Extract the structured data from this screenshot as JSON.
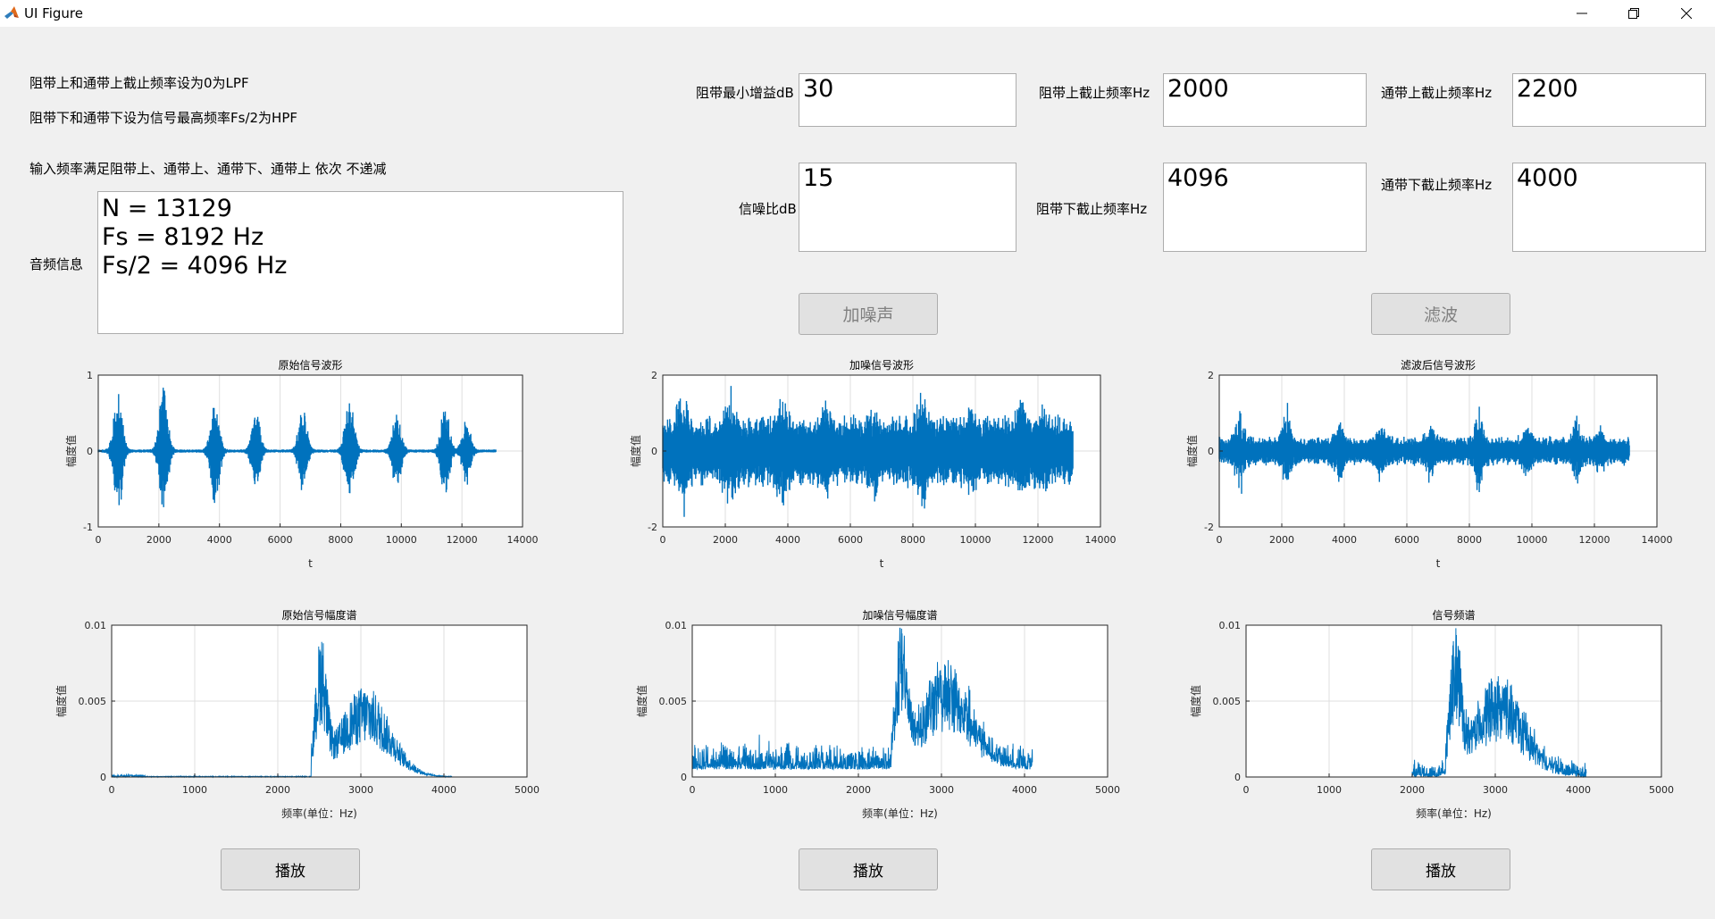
{
  "window": {
    "title": "UI Figure",
    "icon": "matlab-icon"
  },
  "info": {
    "line1": "阻带上和通带上截止频率设为0为LPF",
    "line2": "阻带下和通带下设为信号最高频率Fs/2为HPF",
    "line3": "输入频率满足阻带上、通带上、通带下、通带上 依次 不递减",
    "audio_label": "音频信息",
    "audio_lines": [
      "N = 13129",
      "Fs = 8192 Hz",
      "Fs/2 = 4096 Hz"
    ]
  },
  "params": {
    "stop_gain_label": "阻带最小增益dB",
    "stop_gain": "30",
    "snr_label": "信噪比dB",
    "snr": "15",
    "stop_upper_label": "阻带上截止频率Hz",
    "stop_upper": "2000",
    "stop_lower_label": "阻带下截止频率Hz",
    "stop_lower": "4096",
    "pass_upper_label": "通带上截止频率Hz",
    "pass_upper": "2200",
    "pass_lower_label": "通带下截止频率Hz",
    "pass_lower": "4000"
  },
  "buttons": {
    "add_noise": "加噪声",
    "filter": "滤波",
    "play": "播放"
  },
  "colors": {
    "series": "#0072bd",
    "grid": "#dfdfdf",
    "axis": "#262626"
  },
  "chart_data": [
    {
      "type": "line",
      "title": "原始信号波形",
      "xlabel": "t",
      "ylabel": "幅度值",
      "xlim": [
        0,
        14000
      ],
      "ylim": [
        -1,
        1
      ],
      "xticks": [
        0,
        2000,
        4000,
        6000,
        8000,
        10000,
        12000,
        14000
      ],
      "yticks": [
        -1,
        0,
        1
      ],
      "signal": "bursts",
      "samples": 13129,
      "peaks": [
        0.9,
        0.95,
        0.8,
        0.6,
        0.6,
        0.9,
        0.55,
        0.7,
        0.45
      ]
    },
    {
      "type": "line",
      "title": "加噪信号波形",
      "xlabel": "t",
      "ylabel": "幅度值",
      "xlim": [
        0,
        14000
      ],
      "ylim": [
        -2,
        2
      ],
      "xticks": [
        0,
        2000,
        4000,
        6000,
        8000,
        10000,
        12000,
        14000
      ],
      "yticks": [
        -2,
        0,
        2
      ],
      "signal": "noisy",
      "samples": 13129,
      "peaks": [
        0.9,
        0.95,
        0.8,
        0.6,
        0.6,
        0.9,
        0.55,
        0.7,
        0.45
      ]
    },
    {
      "type": "line",
      "title": "滤波后信号波形",
      "xlabel": "t",
      "ylabel": "幅度值",
      "xlim": [
        0,
        14000
      ],
      "ylim": [
        -2,
        2
      ],
      "xticks": [
        0,
        2000,
        4000,
        6000,
        8000,
        10000,
        12000,
        14000
      ],
      "yticks": [
        -2,
        0,
        2
      ],
      "signal": "filtered",
      "samples": 13129,
      "peaks": [
        0.9,
        0.95,
        0.8,
        0.6,
        0.6,
        0.9,
        0.55,
        0.7,
        0.45
      ]
    },
    {
      "type": "line",
      "title": "原始信号幅度谱",
      "xlabel": "频率(单位：Hz)",
      "ylabel": "幅度值",
      "xlim": [
        0,
        5000
      ],
      "ylim": [
        0,
        0.01
      ],
      "xticks": [
        0,
        1000,
        2000,
        3000,
        4000,
        5000
      ],
      "yticks": [
        0,
        0.005,
        0.01
      ],
      "spectrum": "original",
      "fmax": 4096
    },
    {
      "type": "line",
      "title": "加噪信号幅度谱",
      "xlabel": "频率(单位：Hz)",
      "ylabel": "幅度值",
      "xlim": [
        0,
        5000
      ],
      "ylim": [
        0,
        0.01
      ],
      "xticks": [
        0,
        1000,
        2000,
        3000,
        4000,
        5000
      ],
      "yticks": [
        0,
        0.005,
        0.01
      ],
      "spectrum": "noisy",
      "fmax": 4096
    },
    {
      "type": "line",
      "title": "信号频谱",
      "xlabel": "频率(单位：Hz)",
      "ylabel": "幅度值",
      "xlim": [
        0,
        5000
      ],
      "ylim": [
        0,
        0.01
      ],
      "xticks": [
        0,
        1000,
        2000,
        3000,
        4000,
        5000
      ],
      "yticks": [
        0,
        0.005,
        0.01
      ],
      "spectrum": "filtered",
      "fmax": 4096,
      "band": [
        2000,
        4096
      ]
    }
  ]
}
